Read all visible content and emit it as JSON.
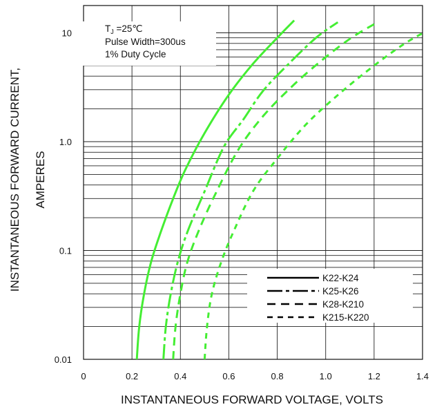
{
  "chart_data": {
    "type": "line",
    "y_scale": "log",
    "grid": true,
    "xlabel": "INSTANTANEOUS FORWARD VOLTAGE, VOLTS",
    "ylabel_line1": "INSTANTANEOUS FORWARD CURRENT,",
    "ylabel_line2": "AMPERES",
    "xlim": [
      0,
      1.4
    ],
    "ylim": [
      0.01,
      20
    ],
    "x_ticks": [
      {
        "value": 0,
        "label": "0"
      },
      {
        "value": 0.2,
        "label": "0.2"
      },
      {
        "value": 0.4,
        "label": "0.4"
      },
      {
        "value": 0.6,
        "label": "0.6"
      },
      {
        "value": 0.8,
        "label": "0.8"
      },
      {
        "value": 1.0,
        "label": "1.0"
      },
      {
        "value": 1.2,
        "label": "1.2"
      },
      {
        "value": 1.4,
        "label": "1.4"
      }
    ],
    "y_ticks": [
      {
        "value": 0.01,
        "label": "0.01"
      },
      {
        "value": 0.1,
        "label": "0.1"
      },
      {
        "value": 1,
        "label": "1.0"
      },
      {
        "value": 10,
        "label": "10"
      }
    ],
    "annotations": {
      "tj_prefix": "T",
      "tj_subscript": "J",
      "tj_suffix": " =25℃",
      "pulse": "Pulse Width=300us",
      "duty": "1% Duty Cycle"
    },
    "line_color": "#44ee33",
    "legend_position": "lower-right",
    "series": [
      {
        "name": "K22-K24",
        "dash": "solid",
        "x": [
          0.22,
          0.23,
          0.25,
          0.28,
          0.32,
          0.37,
          0.42,
          0.5,
          0.6,
          0.7,
          0.8,
          0.87
        ],
        "y": [
          0.01,
          0.02,
          0.04,
          0.08,
          0.15,
          0.3,
          0.55,
          1.2,
          2.7,
          5.2,
          9.0,
          13.0
        ]
      },
      {
        "name": "K25-K26",
        "dash": "dashdot",
        "x": [
          0.33,
          0.34,
          0.36,
          0.39,
          0.43,
          0.5,
          0.58,
          0.66,
          0.74,
          0.84,
          0.96,
          1.05
        ],
        "y": [
          0.01,
          0.02,
          0.04,
          0.08,
          0.15,
          0.35,
          0.9,
          1.6,
          2.9,
          5.0,
          9.0,
          12.5
        ]
      },
      {
        "name": "K28-K210",
        "dash": "dashed",
        "x": [
          0.37,
          0.38,
          0.4,
          0.43,
          0.48,
          0.55,
          0.64,
          0.74,
          0.86,
          0.98,
          1.1,
          1.2
        ],
        "y": [
          0.01,
          0.02,
          0.04,
          0.08,
          0.16,
          0.35,
          0.85,
          1.7,
          3.2,
          5.5,
          8.8,
          12.0
        ]
      },
      {
        "name": "K215-K220",
        "dash": "shortdash",
        "x": [
          0.5,
          0.51,
          0.53,
          0.57,
          0.62,
          0.7,
          0.8,
          0.92,
          1.06,
          1.2,
          1.32,
          1.42
        ],
        "y": [
          0.01,
          0.02,
          0.04,
          0.08,
          0.15,
          0.35,
          0.7,
          1.45,
          2.8,
          5.0,
          7.8,
          10.5
        ]
      }
    ]
  }
}
